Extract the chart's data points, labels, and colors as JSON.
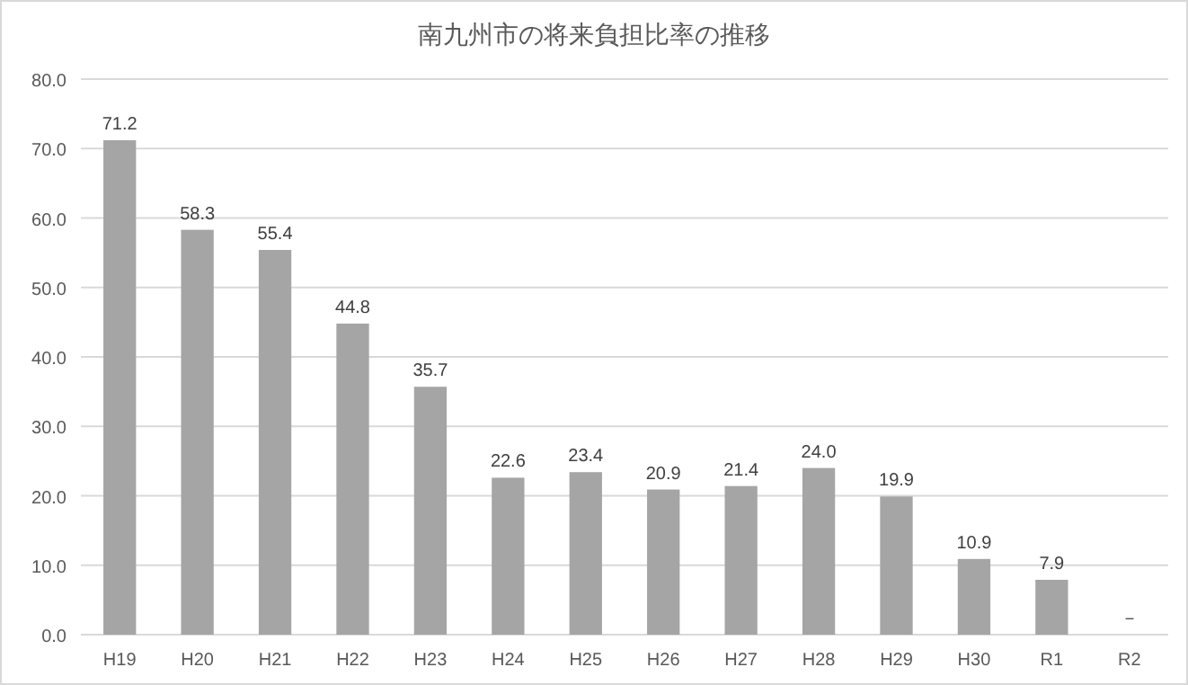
{
  "chart_data": {
    "type": "bar",
    "title": "南九州市の将来負担比率の推移",
    "categories": [
      "H19",
      "H20",
      "H21",
      "H22",
      "H23",
      "H24",
      "H25",
      "H26",
      "H27",
      "H28",
      "H29",
      "H30",
      "R1",
      "R2"
    ],
    "values": [
      71.2,
      58.3,
      55.4,
      44.8,
      35.7,
      22.6,
      23.4,
      20.9,
      21.4,
      24.0,
      19.9,
      10.9,
      7.9,
      null
    ],
    "value_labels": [
      "71.2",
      "58.3",
      "55.4",
      "44.8",
      "35.7",
      "22.6",
      "23.4",
      "20.9",
      "21.4",
      "24.0",
      "19.9",
      "10.9",
      "7.9",
      "－"
    ],
    "color": "#a5a5a5",
    "ylim": [
      0,
      80
    ],
    "yticks": [
      {
        "value": 0,
        "label": "0.0"
      },
      {
        "value": 10,
        "label": "10.0"
      },
      {
        "value": 20,
        "label": "20.0"
      },
      {
        "value": 30,
        "label": "30.0"
      },
      {
        "value": 40,
        "label": "40.0"
      },
      {
        "value": 50,
        "label": "50.0"
      },
      {
        "value": 60,
        "label": "60.0"
      },
      {
        "value": 70,
        "label": "70.0"
      },
      {
        "value": 80,
        "label": "80.0"
      }
    ],
    "grid": "y"
  }
}
